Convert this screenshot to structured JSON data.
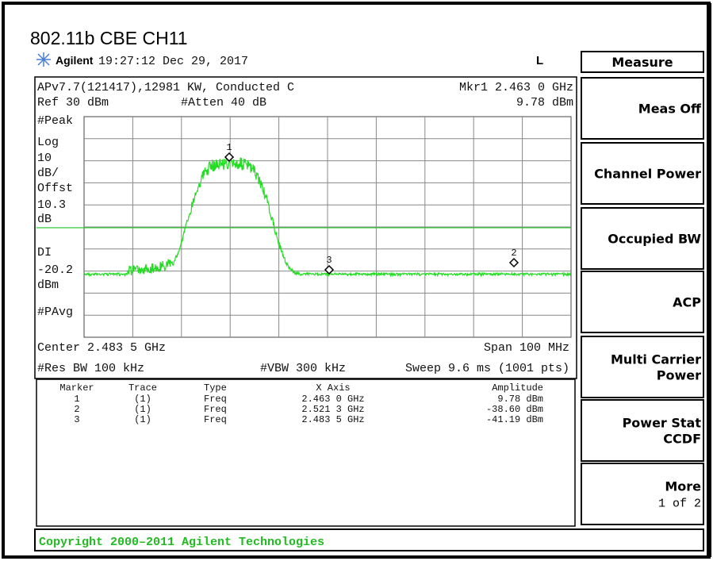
{
  "title": "802.11b CBE CH11",
  "header": {
    "brand": "Agilent",
    "time": "19:27:12  Dec 29, 2017",
    "mode": "L"
  },
  "screen": {
    "info": "APv7.7(121417),12981 KW, Conducted C",
    "marker_readout": "Mkr1  2.463 0 GHz",
    "ref": "Ref 30 dBm",
    "atten": "#Atten 40 dB",
    "marker_amplitude": "9.78 dBm",
    "left_labels": [
      "#Peak",
      "Log",
      "10",
      "dB/",
      "Offst",
      "10.3",
      "dB",
      "DI",
      "-20.2",
      "dBm",
      "#PAvg"
    ],
    "center": "Center 2.483 5 GHz",
    "span": "Span 100 MHz",
    "res_bw": "#Res BW 100 kHz",
    "vbw": "#VBW 300 kHz",
    "sweep": "Sweep 9.6 ms (1001 pts)",
    "marker_labels": [
      "1",
      "2",
      "3"
    ]
  },
  "table": {
    "headers": [
      "Marker",
      "Trace",
      "Type",
      "X Axis",
      "Amplitude"
    ],
    "rows": [
      [
        "1",
        "(1)",
        "Freq",
        "2.463 0 GHz",
        "9.78 dBm"
      ],
      [
        "2",
        "(1)",
        "Freq",
        "2.521 3 GHz",
        "-38.60 dBm"
      ],
      [
        "3",
        "(1)",
        "Freq",
        "2.483 5 GHz",
        "-41.19 dBm"
      ]
    ]
  },
  "menu": {
    "title": "Measure",
    "keys": [
      [
        "Meas Off"
      ],
      [
        "Channel Power"
      ],
      [
        "Occupied BW"
      ],
      [
        "ACP"
      ],
      [
        "Multi Carrier",
        "Power"
      ],
      [
        "Power Stat",
        "CCDF"
      ],
      [
        "More",
        "1 of 2"
      ]
    ]
  },
  "footer": "Copyright 2000–2011 Agilent Technologies"
}
